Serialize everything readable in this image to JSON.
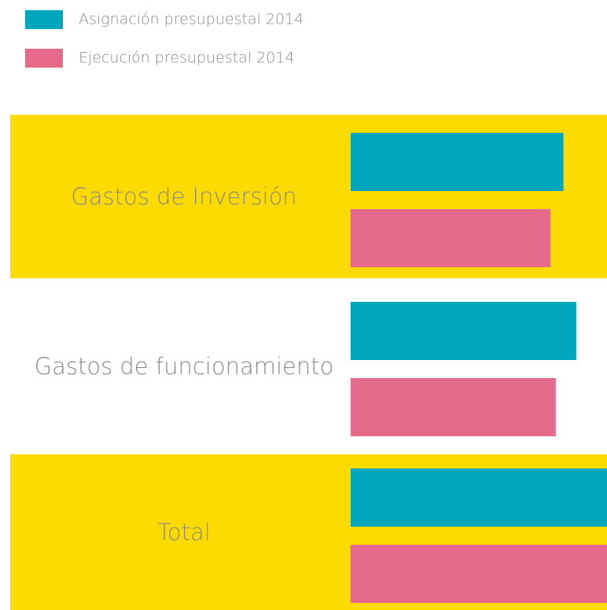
{
  "chart_data": {
    "type": "bar",
    "orientation": "horizontal",
    "categories": [
      "Gastos de Inversión",
      "Gastos de funcionamiento",
      "Total"
    ],
    "series": [
      {
        "name": "Asignación presupuestal 2014",
        "color": "#00a6bc",
        "values": [
          83,
          88,
          100
        ]
      },
      {
        "name": "Ejecución presupuestal 2014",
        "color": "#e5698a",
        "values": [
          78,
          80,
          100
        ]
      }
    ],
    "xlim": [
      0,
      100
    ]
  }
}
